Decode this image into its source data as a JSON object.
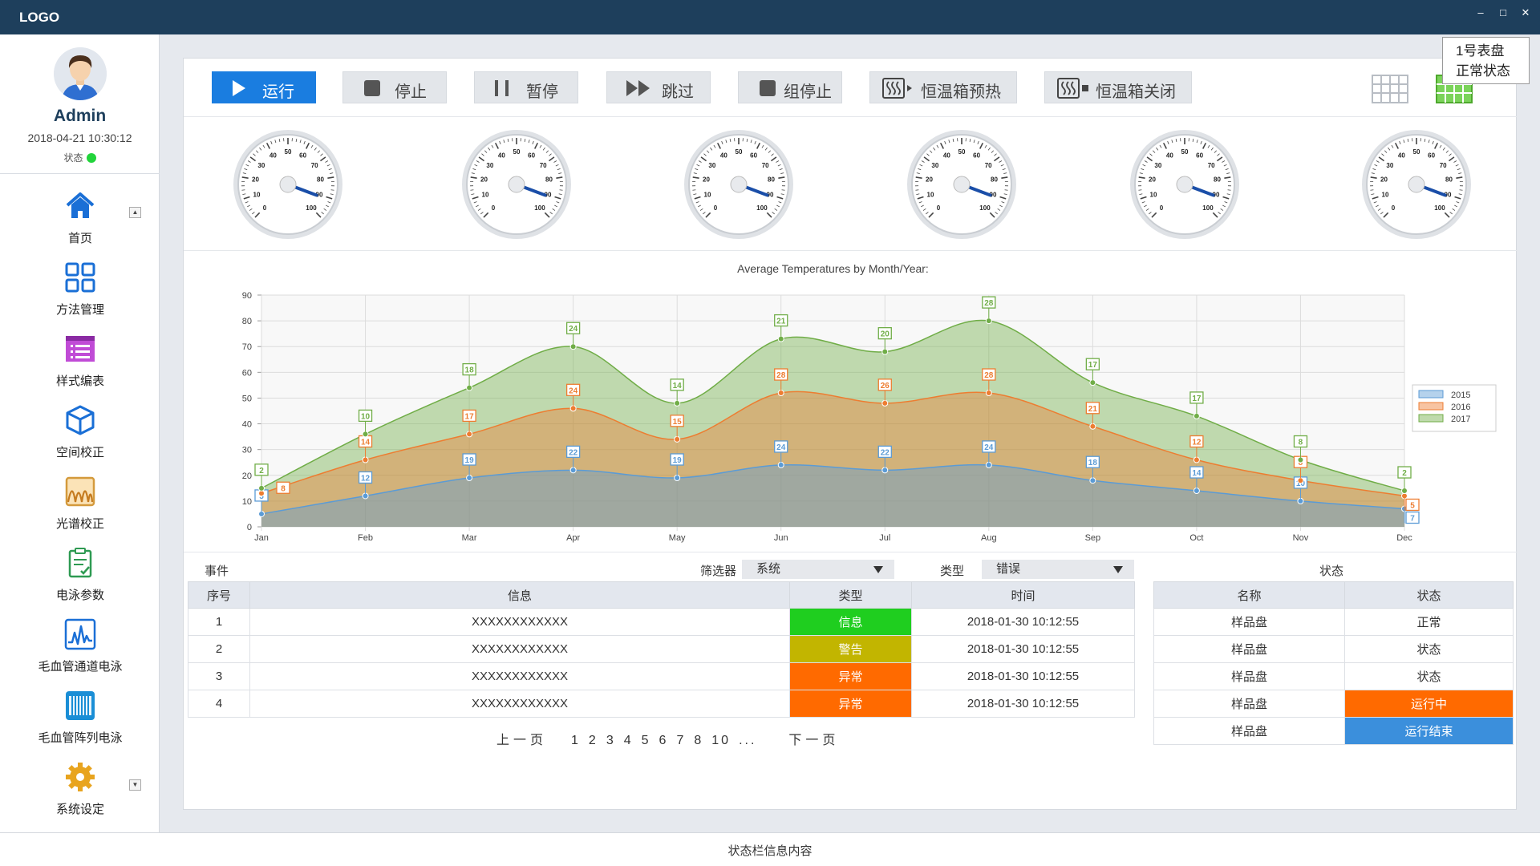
{
  "titlebar": {
    "logo": "LOGO"
  },
  "user": {
    "name": "Admin",
    "datetime": "2018-04-21 10:30:12",
    "status_label": "状态",
    "status_color": "#22d43b"
  },
  "sidebar": {
    "items": [
      {
        "label": "首页",
        "icon": "home-icon"
      },
      {
        "label": "方法管理",
        "icon": "grid-icon"
      },
      {
        "label": "样式编表",
        "icon": "list-form-icon"
      },
      {
        "label": "空间校正",
        "icon": "cube-icon"
      },
      {
        "label": "光谱校正",
        "icon": "spectrum-icon"
      },
      {
        "label": "电泳参数",
        "icon": "clipboard-icon"
      },
      {
        "label": "毛血管通道电泳",
        "icon": "waveform-icon"
      },
      {
        "label": "毛血管阵列电泳",
        "icon": "array-icon"
      },
      {
        "label": "系统设定",
        "icon": "gear-icon"
      }
    ]
  },
  "toolbar": {
    "run": "运行",
    "stop": "停止",
    "pause": "暂停",
    "skip": "跳过",
    "group_stop": "组停止",
    "preheat": "恒温箱预热",
    "close_incubator": "恒温箱关闭"
  },
  "tooltip": {
    "line1": "1号表盘",
    "line2": "正常状态"
  },
  "gauges": {
    "count": 6,
    "tick_labels": [
      "0",
      "10",
      "20",
      "30",
      "40",
      "50",
      "60",
      "70",
      "80",
      "90",
      "100"
    ],
    "value": 91
  },
  "chart_data": {
    "type": "area",
    "title": "Average Temperatures by Month/Year:",
    "categories": [
      "Jan",
      "Feb",
      "Mar",
      "Apr",
      "May",
      "Jun",
      "Jul",
      "Aug",
      "Sep",
      "Oct",
      "Nov",
      "Dec"
    ],
    "series": [
      {
        "name": "2015",
        "values": [
          5,
          12,
          19,
          22,
          19,
          24,
          22,
          24,
          18,
          14,
          10,
          7
        ],
        "color": "#5b9bd5"
      },
      {
        "name": "2016",
        "values": [
          8,
          14,
          17,
          24,
          15,
          28,
          26,
          28,
          21,
          12,
          8,
          5
        ],
        "color": "#ed7d31"
      },
      {
        "name": "2017",
        "values": [
          2,
          10,
          18,
          24,
          14,
          21,
          20,
          28,
          17,
          17,
          8,
          2
        ],
        "color": "#70ad47"
      }
    ],
    "stacked": true,
    "ylim": [
      0,
      90
    ],
    "yticks": [
      0,
      10,
      20,
      30,
      40,
      50,
      60,
      70,
      80,
      90
    ],
    "legend": "right",
    "grid": true
  },
  "events": {
    "label": "事件",
    "filter_label": "筛选器",
    "filter_value": "系统",
    "type_label": "类型",
    "type_value": "错误",
    "columns": [
      "序号",
      "信息",
      "类型",
      "时间"
    ],
    "rows": [
      {
        "no": "1",
        "info": "XXXXXXXXXXXX",
        "type": "信息",
        "color": "#1fce1f",
        "time": "2018-01-30 10:12:55"
      },
      {
        "no": "2",
        "info": "XXXXXXXXXXXX",
        "type": "警告",
        "color": "#c2b500",
        "time": "2018-01-30 10:12:55"
      },
      {
        "no": "3",
        "info": "XXXXXXXXXXXX",
        "type": "异常",
        "color": "#ff6a00",
        "time": "2018-01-30 10:12:55"
      },
      {
        "no": "4",
        "info": "XXXXXXXXXXXX",
        "type": "异常",
        "color": "#ff6a00",
        "time": "2018-01-30 10:12:55"
      }
    ],
    "pager": {
      "prev": "上一页",
      "pages": [
        "1",
        "2",
        "3",
        "4",
        "5",
        "6",
        "7",
        "8",
        "10",
        "..."
      ],
      "next": "下一页"
    }
  },
  "status_panel": {
    "title": "状态",
    "columns": [
      "名称",
      "状态"
    ],
    "rows": [
      {
        "name": "样品盘",
        "status": "正常",
        "color": ""
      },
      {
        "name": "样品盘",
        "status": "状态",
        "color": ""
      },
      {
        "name": "样品盘",
        "status": "状态",
        "color": ""
      },
      {
        "name": "样品盘",
        "status": "运行中",
        "color": "#ff6a00"
      },
      {
        "name": "样品盘",
        "status": "运行结束",
        "color": "#3b8fdc"
      }
    ]
  },
  "statusbar": {
    "text": "状态栏信息内容"
  }
}
